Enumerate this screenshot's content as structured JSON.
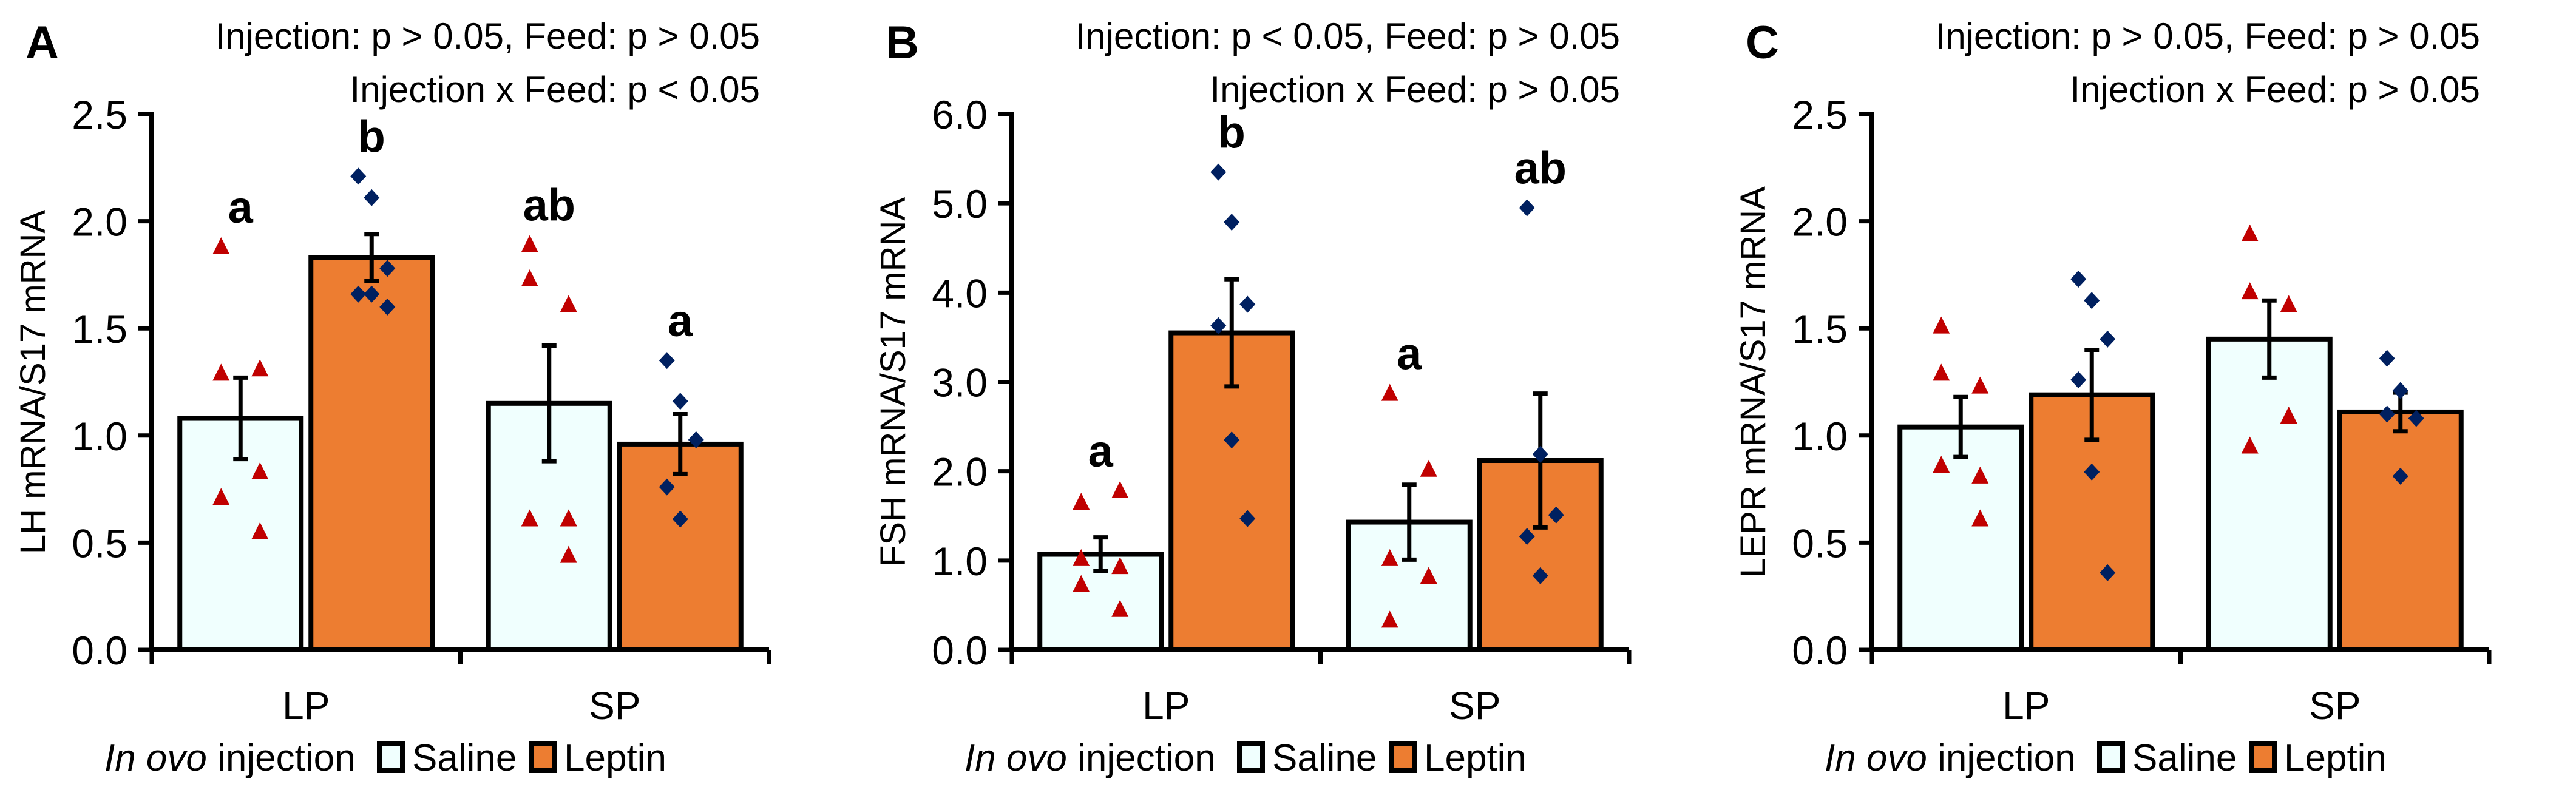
{
  "colors": {
    "saline_fill": "#f0fffe",
    "leptin_fill": "#ed7d31",
    "saline_point": "#c00000",
    "leptin_point": "#002060",
    "axis": "#000000"
  },
  "legend": {
    "title_italic": "In ovo",
    "title_rest": " injection",
    "items": [
      "Saline",
      "Leptin"
    ]
  },
  "chart_data": [
    {
      "type": "bar",
      "panel": "A",
      "stats": [
        "Injection: p > 0.05, Feed: p >  0.05",
        "Injection x Feed: p < 0.05"
      ],
      "ylabel": "LH mRNA/S17 mRNA",
      "ylim": [
        0,
        2.5
      ],
      "yticks": [
        "0.0",
        "0.5",
        "1.0",
        "1.5",
        "2.0",
        "2.5"
      ],
      "categories": [
        "LP",
        "SP"
      ],
      "series": [
        {
          "name": "Saline",
          "values": [
            1.08,
            1.15
          ],
          "se": [
            0.19,
            0.27
          ],
          "letters": [
            "a",
            "ab"
          ],
          "points": [
            [
              1.88,
              1.31,
              1.29,
              0.83,
              0.71,
              0.55
            ],
            [
              1.89,
              1.61,
              1.73,
              0.61,
              0.61,
              0.44
            ]
          ]
        },
        {
          "name": "Leptin",
          "values": [
            1.83,
            0.96
          ],
          "se": [
            0.11,
            0.14
          ],
          "letters": [
            "b",
            "a"
          ],
          "points": [
            [
              2.21,
              2.11,
              1.78,
              1.66,
              1.66,
              1.6
            ],
            [
              1.35,
              1.16,
              0.98,
              0.76,
              0.61
            ]
          ]
        }
      ]
    },
    {
      "type": "bar",
      "panel": "B",
      "stats": [
        "Injection: p < 0.05, Feed: p > 0.05",
        "Injection x Feed: p > 0.05"
      ],
      "ylabel": "FSH mRNA/S17 mRNA",
      "ylim": [
        0,
        6
      ],
      "yticks": [
        "0.0",
        "1.0",
        "2.0",
        "3.0",
        "4.0",
        "5.0",
        "6.0"
      ],
      "categories": [
        "LP",
        "SP"
      ],
      "series": [
        {
          "name": "Saline",
          "values": [
            1.07,
            1.43
          ],
          "se": [
            0.19,
            0.42
          ],
          "letters": [
            "a",
            "a"
          ],
          "points": [
            [
              1.65,
              1.78,
              1.02,
              0.93,
              0.73,
              0.45
            ],
            [
              2.87,
              2.02,
              1.02,
              0.82,
              0.33
            ]
          ]
        },
        {
          "name": "Leptin",
          "values": [
            3.55,
            2.12
          ],
          "se": [
            0.6,
            0.75
          ],
          "letters": [
            "b",
            "ab"
          ],
          "points": [
            [
              5.35,
              4.79,
              3.87,
              3.63,
              2.35,
              1.47
            ],
            [
              4.95,
              2.19,
              1.51,
              1.27,
              0.83
            ]
          ]
        }
      ]
    },
    {
      "type": "bar",
      "panel": "C",
      "stats": [
        "Injection: p > 0.05, Feed: p > 0.05",
        "Injection x Feed: p > 0.05"
      ],
      "ylabel": "LEPR mRNA/S17 mRNA",
      "ylim": [
        0,
        2.5
      ],
      "yticks": [
        "0.0",
        "0.5",
        "1.0",
        "1.5",
        "2.0",
        "2.5"
      ],
      "categories": [
        "LP",
        "SP"
      ],
      "series": [
        {
          "name": "Saline",
          "values": [
            1.04,
            1.45
          ],
          "se": [
            0.14,
            0.18
          ],
          "letters": [
            "",
            ""
          ],
          "points": [
            [
              1.29,
              1.23,
              1.51,
              0.81,
              0.86,
              0.61
            ],
            [
              1.67,
              1.61,
              1.94,
              1.09,
              0.95
            ]
          ]
        },
        {
          "name": "Leptin",
          "values": [
            1.19,
            1.11
          ],
          "se": [
            0.21,
            0.09
          ],
          "letters": [
            "",
            ""
          ],
          "points": [
            [
              1.73,
              1.63,
              1.45,
              1.26,
              0.83,
              0.36
            ],
            [
              1.36,
              1.21,
              1.08,
              1.1,
              0.81
            ]
          ]
        }
      ]
    }
  ]
}
